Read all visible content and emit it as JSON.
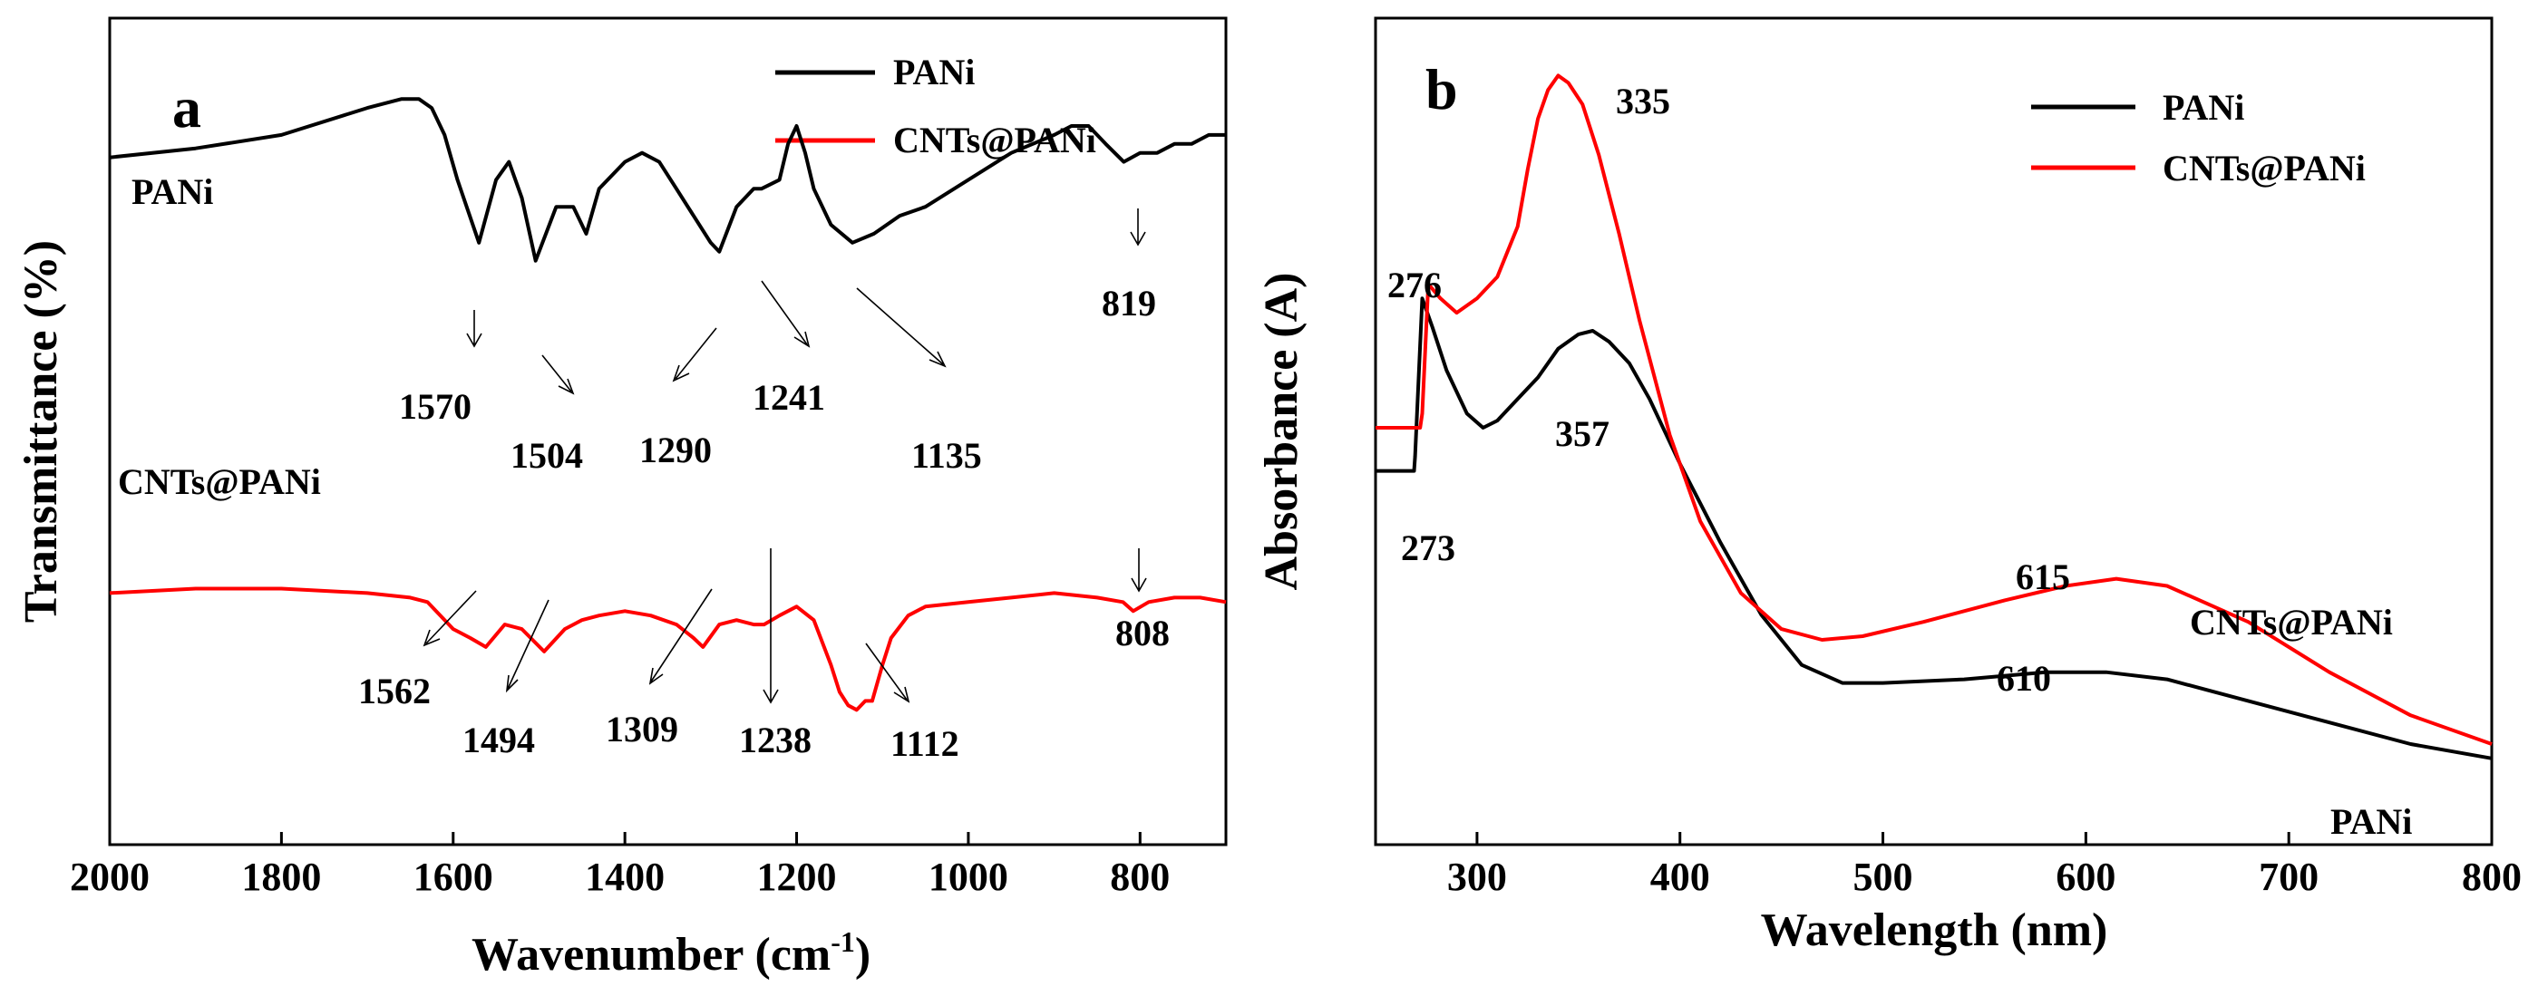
{
  "chart_data": [
    {
      "panel": "a",
      "type": "line",
      "xlabel": "Wavenumber (cm",
      "xlabel_sup": "-1",
      "xlabel_close": ")",
      "ylabel": "Transmittance (%)",
      "xlim": [
        2000,
        700
      ],
      "xticks": [
        "2000",
        "1800",
        "1600",
        "1400",
        "1200",
        "1000",
        "800"
      ],
      "legend": [
        {
          "name": "PANi",
          "color": "#000000"
        },
        {
          "name": "CNTs@PANi",
          "color": "#ff0000"
        }
      ],
      "series_labels": {
        "pani": "PANi",
        "cnts": "CNTs@PANi"
      },
      "series": [
        {
          "name": "PANi",
          "color": "#000000",
          "x": [
            2000,
            1900,
            1800,
            1700,
            1660,
            1640,
            1625,
            1610,
            1595,
            1570,
            1550,
            1535,
            1520,
            1504,
            1480,
            1460,
            1445,
            1430,
            1400,
            1380,
            1360,
            1340,
            1320,
            1300,
            1290,
            1270,
            1250,
            1241,
            1220,
            1210,
            1200,
            1190,
            1180,
            1160,
            1135,
            1110,
            1080,
            1050,
            1000,
            950,
            900,
            880,
            860,
            840,
            819,
            800,
            780,
            760,
            740,
            720,
            700
          ],
          "y": [
            96.5,
            97.5,
            99,
            102,
            103,
            103,
            102,
            99,
            94,
            87,
            94,
            96,
            92,
            85,
            91,
            91,
            88,
            93,
            96,
            97,
            96,
            93,
            90,
            87,
            86,
            91,
            93,
            93,
            94,
            98,
            100,
            97,
            93,
            89,
            87,
            88,
            90,
            91,
            94,
            97,
            99,
            100,
            100,
            98,
            96,
            97,
            97,
            98,
            98,
            99,
            99
          ]
        },
        {
          "name": "CNTs@PANi",
          "color": "#ff0000",
          "x": [
            2000,
            1900,
            1800,
            1700,
            1650,
            1630,
            1600,
            1580,
            1562,
            1540,
            1520,
            1494,
            1470,
            1450,
            1430,
            1400,
            1370,
            1340,
            1320,
            1309,
            1290,
            1270,
            1250,
            1238,
            1220,
            1200,
            1180,
            1160,
            1150,
            1140,
            1130,
            1120,
            1112,
            1100,
            1090,
            1070,
            1050,
            1000,
            950,
            900,
            850,
            820,
            808,
            790,
            760,
            730,
            700
          ],
          "y": [
            48,
            48.5,
            48.5,
            48,
            47.5,
            47,
            44,
            43,
            42,
            44.5,
            44,
            41.5,
            44,
            45,
            45.5,
            46,
            45.5,
            44.5,
            43,
            42,
            44.5,
            45,
            44.5,
            44.5,
            45.5,
            46.5,
            45,
            40,
            37,
            35.5,
            35,
            36,
            36,
            40,
            43,
            45.5,
            46.5,
            47,
            47.5,
            48,
            47.5,
            47,
            46,
            47,
            47.5,
            47.5,
            47
          ]
        }
      ],
      "annotations": [
        "1570",
        "1504",
        "1290",
        "1241",
        "1135",
        "819",
        "1562",
        "1494",
        "1309",
        "1238",
        "1112",
        "808"
      ]
    },
    {
      "panel": "b",
      "type": "line",
      "xlabel": "Wavelength (nm)",
      "ylabel": "Absorbance (A)",
      "xlim": [
        250,
        800
      ],
      "xticks": [
        "300",
        "400",
        "500",
        "600",
        "700",
        "800"
      ],
      "legend": [
        {
          "name": "PANi",
          "color": "#000000"
        },
        {
          "name": "CNTs@PANi",
          "color": "#ff0000"
        }
      ],
      "series_labels": {
        "pani": "PANi",
        "cnts": "CNTs@PANi"
      },
      "series": [
        {
          "name": "PANi",
          "color": "#000000",
          "x": [
            250,
            269,
            269.5,
            273,
            278,
            285,
            295,
            303,
            310,
            320,
            330,
            340,
            350,
            357,
            365,
            375,
            385,
            400,
            420,
            440,
            460,
            480,
            500,
            540,
            580,
            610,
            640,
            680,
            720,
            760,
            800
          ],
          "y": [
            0.62,
            0.62,
            0.64,
            0.86,
            0.82,
            0.76,
            0.7,
            0.68,
            0.69,
            0.72,
            0.75,
            0.79,
            0.81,
            0.815,
            0.8,
            0.77,
            0.72,
            0.63,
            0.52,
            0.42,
            0.35,
            0.325,
            0.325,
            0.33,
            0.34,
            0.34,
            0.33,
            0.3,
            0.27,
            0.24,
            0.22
          ]
        },
        {
          "name": "CNTs@PANi",
          "color": "#ff0000",
          "x": [
            250,
            272,
            273,
            276,
            282,
            290,
            300,
            310,
            320,
            325,
            330,
            335,
            340,
            345,
            352,
            360,
            370,
            380,
            395,
            410,
            430,
            450,
            470,
            490,
            520,
            560,
            590,
            615,
            640,
            680,
            720,
            760,
            800
          ],
          "y": [
            0.68,
            0.68,
            0.7,
            0.88,
            0.86,
            0.84,
            0.86,
            0.89,
            0.96,
            1.04,
            1.11,
            1.15,
            1.17,
            1.16,
            1.13,
            1.06,
            0.95,
            0.83,
            0.67,
            0.55,
            0.45,
            0.4,
            0.385,
            0.39,
            0.41,
            0.44,
            0.46,
            0.47,
            0.46,
            0.41,
            0.34,
            0.28,
            0.24
          ]
        }
      ],
      "annotations": [
        "335",
        "276",
        "357",
        "273",
        "615",
        "610"
      ]
    }
  ]
}
